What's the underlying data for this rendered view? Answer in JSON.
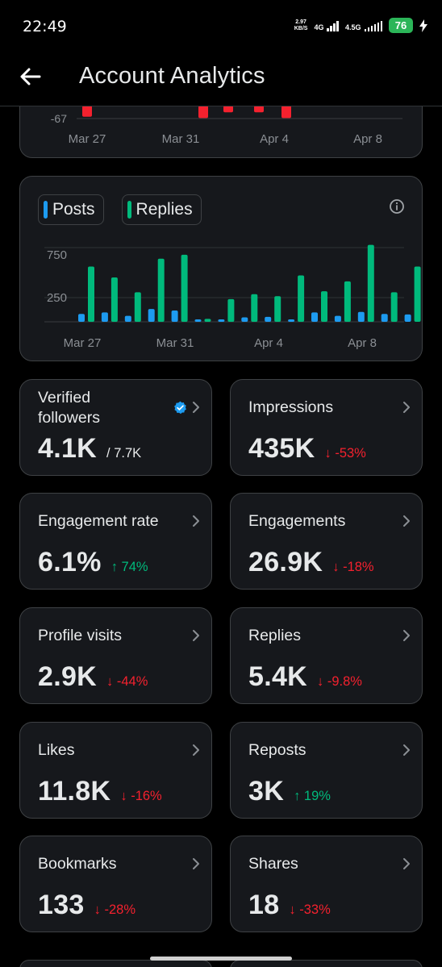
{
  "status_bar": {
    "time": "22:49",
    "net_speed_value": "2.97",
    "net_speed_unit": "KB/S",
    "network_1": "4G",
    "network_2": "4.5G",
    "battery": "76"
  },
  "header": {
    "title": "Account Analytics"
  },
  "chart_data": [
    {
      "type": "bar",
      "partial": true,
      "yticks": [
        "-67"
      ],
      "xticks": [
        "Mar 27",
        "Mar 31",
        "Apr 4",
        "Apr 8"
      ],
      "series": [
        {
          "color": "#f4212e",
          "values": [
            -25,
            0,
            0,
            0,
            -28,
            -15,
            -15,
            -28
          ]
        }
      ]
    },
    {
      "type": "bar",
      "legend": [
        "Posts",
        "Replies"
      ],
      "yticks": [
        "750",
        "250"
      ],
      "ylim": [
        0,
        900
      ],
      "xticks": [
        "Mar 27",
        "Mar 31",
        "Apr 4",
        "Apr 8"
      ],
      "series": [
        {
          "name": "Posts",
          "color": "#1d9bf0",
          "values": [
            80,
            95,
            60,
            130,
            115,
            25,
            25,
            45,
            50,
            25,
            95,
            60,
            100,
            80,
            75
          ]
        },
        {
          "name": "Replies",
          "color": "#00ba7c",
          "values": [
            560,
            450,
            300,
            640,
            680,
            30,
            230,
            280,
            260,
            470,
            310,
            410,
            780,
            300,
            560
          ]
        }
      ]
    }
  ],
  "colors": {
    "posts": "#1d9bf0",
    "replies": "#00ba7c",
    "negative": "#f4212e",
    "verified": "#1d9bf0"
  },
  "stats": [
    {
      "label": "Verified followers",
      "value": "4.1K",
      "sub": "/ 7.7K",
      "delta": "",
      "trend": "none",
      "verified_icon": true
    },
    {
      "label": "Impressions",
      "value": "435K",
      "delta": "↓ -53%",
      "trend": "down"
    },
    {
      "label": "Engagement rate",
      "value": "6.1%",
      "delta": "↑ 74%",
      "trend": "up"
    },
    {
      "label": "Engagements",
      "value": "26.9K",
      "delta": "↓ -18%",
      "trend": "down"
    },
    {
      "label": "Profile visits",
      "value": "2.9K",
      "delta": "↓ -44%",
      "trend": "down"
    },
    {
      "label": "Replies",
      "value": "5.4K",
      "delta": "↓ -9.8%",
      "trend": "down"
    },
    {
      "label": "Likes",
      "value": "11.8K",
      "delta": "↓ -16%",
      "trend": "down"
    },
    {
      "label": "Reposts",
      "value": "3K",
      "delta": "↑ 19%",
      "trend": "up"
    },
    {
      "label": "Bookmarks",
      "value": "133",
      "delta": "↓ -28%",
      "trend": "down"
    },
    {
      "label": "Shares",
      "value": "18",
      "delta": "↓ -33%",
      "trend": "down"
    }
  ]
}
